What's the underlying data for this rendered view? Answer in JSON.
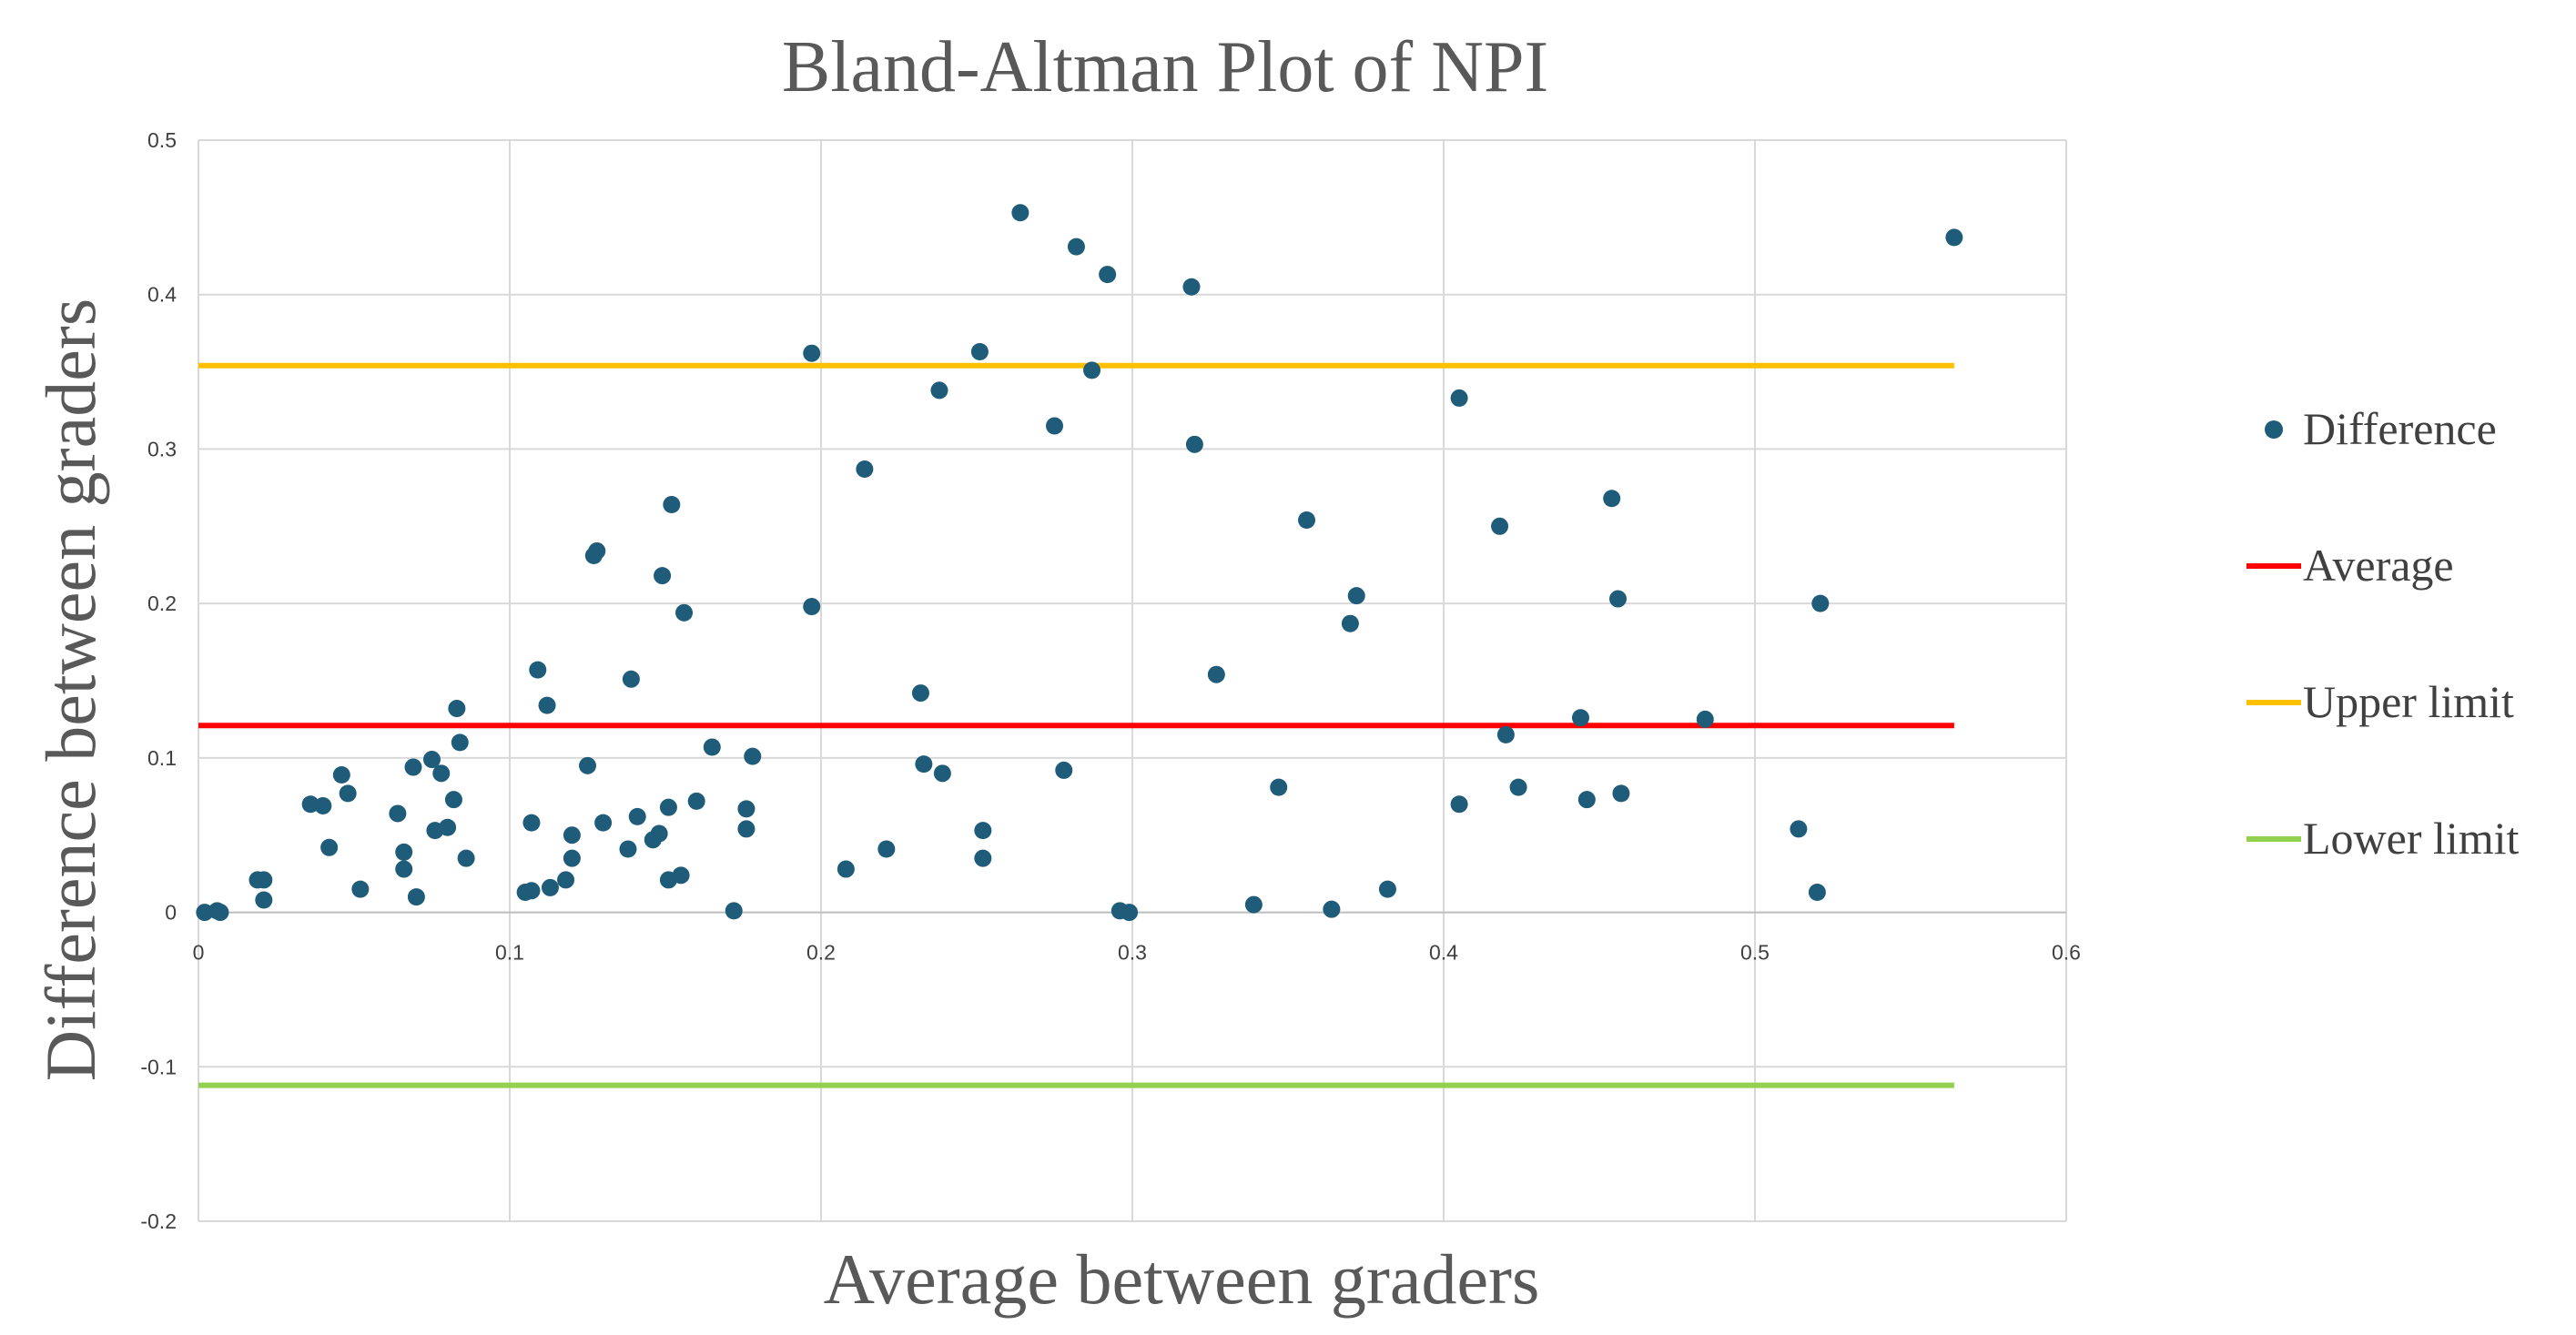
{
  "chart_data": {
    "type": "scatter",
    "title": "Bland-Altman Plot of NPI",
    "xlabel": "Average between graders",
    "ylabel": "Difference between graders",
    "xlim": [
      0,
      0.6
    ],
    "ylim": [
      -0.2,
      0.5
    ],
    "x_ticks": [
      "0",
      "0.1",
      "0.2",
      "0.3",
      "0.4",
      "0.5",
      "0.6"
    ],
    "y_ticks": [
      "-0.2",
      "-0.1",
      "0",
      "0.1",
      "0.2",
      "0.3",
      "0.4",
      "0.5"
    ],
    "grid": true,
    "legend_position": "right",
    "series": [
      {
        "name": "Difference",
        "kind": "points",
        "color": "#1f5c7a",
        "points": [
          [
            0.002,
            0.0
          ],
          [
            0.006,
            0.001
          ],
          [
            0.007,
            0.0
          ],
          [
            0.019,
            0.021
          ],
          [
            0.021,
            0.021
          ],
          [
            0.021,
            0.008
          ],
          [
            0.036,
            0.07
          ],
          [
            0.04,
            0.069
          ],
          [
            0.042,
            0.042
          ],
          [
            0.046,
            0.089
          ],
          [
            0.048,
            0.077
          ],
          [
            0.052,
            0.015
          ],
          [
            0.064,
            0.064
          ],
          [
            0.066,
            0.039
          ],
          [
            0.066,
            0.028
          ],
          [
            0.069,
            0.094
          ],
          [
            0.07,
            0.01
          ],
          [
            0.075,
            0.099
          ],
          [
            0.076,
            0.053
          ],
          [
            0.078,
            0.09
          ],
          [
            0.08,
            0.055
          ],
          [
            0.082,
            0.073
          ],
          [
            0.083,
            0.132
          ],
          [
            0.084,
            0.11
          ],
          [
            0.086,
            0.035
          ],
          [
            0.105,
            0.013
          ],
          [
            0.107,
            0.014
          ],
          [
            0.107,
            0.058
          ],
          [
            0.109,
            0.157
          ],
          [
            0.112,
            0.134
          ],
          [
            0.113,
            0.016
          ],
          [
            0.118,
            0.021
          ],
          [
            0.12,
            0.035
          ],
          [
            0.12,
            0.05
          ],
          [
            0.125,
            0.095
          ],
          [
            0.127,
            0.231
          ],
          [
            0.128,
            0.234
          ],
          [
            0.13,
            0.058
          ],
          [
            0.138,
            0.041
          ],
          [
            0.139,
            0.151
          ],
          [
            0.141,
            0.062
          ],
          [
            0.146,
            0.047
          ],
          [
            0.148,
            0.051
          ],
          [
            0.149,
            0.218
          ],
          [
            0.151,
            0.068
          ],
          [
            0.151,
            0.021
          ],
          [
            0.152,
            0.264
          ],
          [
            0.155,
            0.024
          ],
          [
            0.156,
            0.194
          ],
          [
            0.16,
            0.072
          ],
          [
            0.165,
            0.107
          ],
          [
            0.172,
            0.001
          ],
          [
            0.176,
            0.054
          ],
          [
            0.176,
            0.067
          ],
          [
            0.178,
            0.101
          ],
          [
            0.197,
            0.362
          ],
          [
            0.197,
            0.198
          ],
          [
            0.208,
            0.028
          ],
          [
            0.214,
            0.287
          ],
          [
            0.221,
            0.041
          ],
          [
            0.232,
            0.142
          ],
          [
            0.233,
            0.096
          ],
          [
            0.238,
            0.338
          ],
          [
            0.239,
            0.09
          ],
          [
            0.251,
            0.363
          ],
          [
            0.252,
            0.053
          ],
          [
            0.252,
            0.035
          ],
          [
            0.264,
            0.453
          ],
          [
            0.275,
            0.315
          ],
          [
            0.278,
            0.092
          ],
          [
            0.282,
            0.431
          ],
          [
            0.287,
            0.351
          ],
          [
            0.292,
            0.413
          ],
          [
            0.296,
            0.001
          ],
          [
            0.299,
            0.0
          ],
          [
            0.319,
            0.405
          ],
          [
            0.32,
            0.303
          ],
          [
            0.327,
            0.154
          ],
          [
            0.339,
            0.005
          ],
          [
            0.347,
            0.081
          ],
          [
            0.356,
            0.254
          ],
          [
            0.364,
            0.002
          ],
          [
            0.37,
            0.187
          ],
          [
            0.372,
            0.205
          ],
          [
            0.382,
            0.015
          ],
          [
            0.405,
            0.333
          ],
          [
            0.405,
            0.07
          ],
          [
            0.418,
            0.25
          ],
          [
            0.42,
            0.115
          ],
          [
            0.424,
            0.081
          ],
          [
            0.444,
            0.126
          ],
          [
            0.446,
            0.073
          ],
          [
            0.454,
            0.268
          ],
          [
            0.456,
            0.203
          ],
          [
            0.457,
            0.077
          ],
          [
            0.484,
            0.125
          ],
          [
            0.514,
            0.054
          ],
          [
            0.52,
            0.013
          ],
          [
            0.521,
            0.2
          ],
          [
            0.564,
            0.437
          ]
        ]
      },
      {
        "name": "Average",
        "kind": "hline",
        "color": "#ff0000",
        "y": 0.121,
        "x_range": [
          0,
          0.564
        ]
      },
      {
        "name": "Upper limit",
        "kind": "hline",
        "color": "#ffc000",
        "y": 0.354,
        "x_range": [
          0,
          0.564
        ]
      },
      {
        "name": "Lower limit",
        "kind": "hline",
        "color": "#92d050",
        "y": -0.112,
        "x_range": [
          0,
          0.564
        ]
      }
    ]
  }
}
